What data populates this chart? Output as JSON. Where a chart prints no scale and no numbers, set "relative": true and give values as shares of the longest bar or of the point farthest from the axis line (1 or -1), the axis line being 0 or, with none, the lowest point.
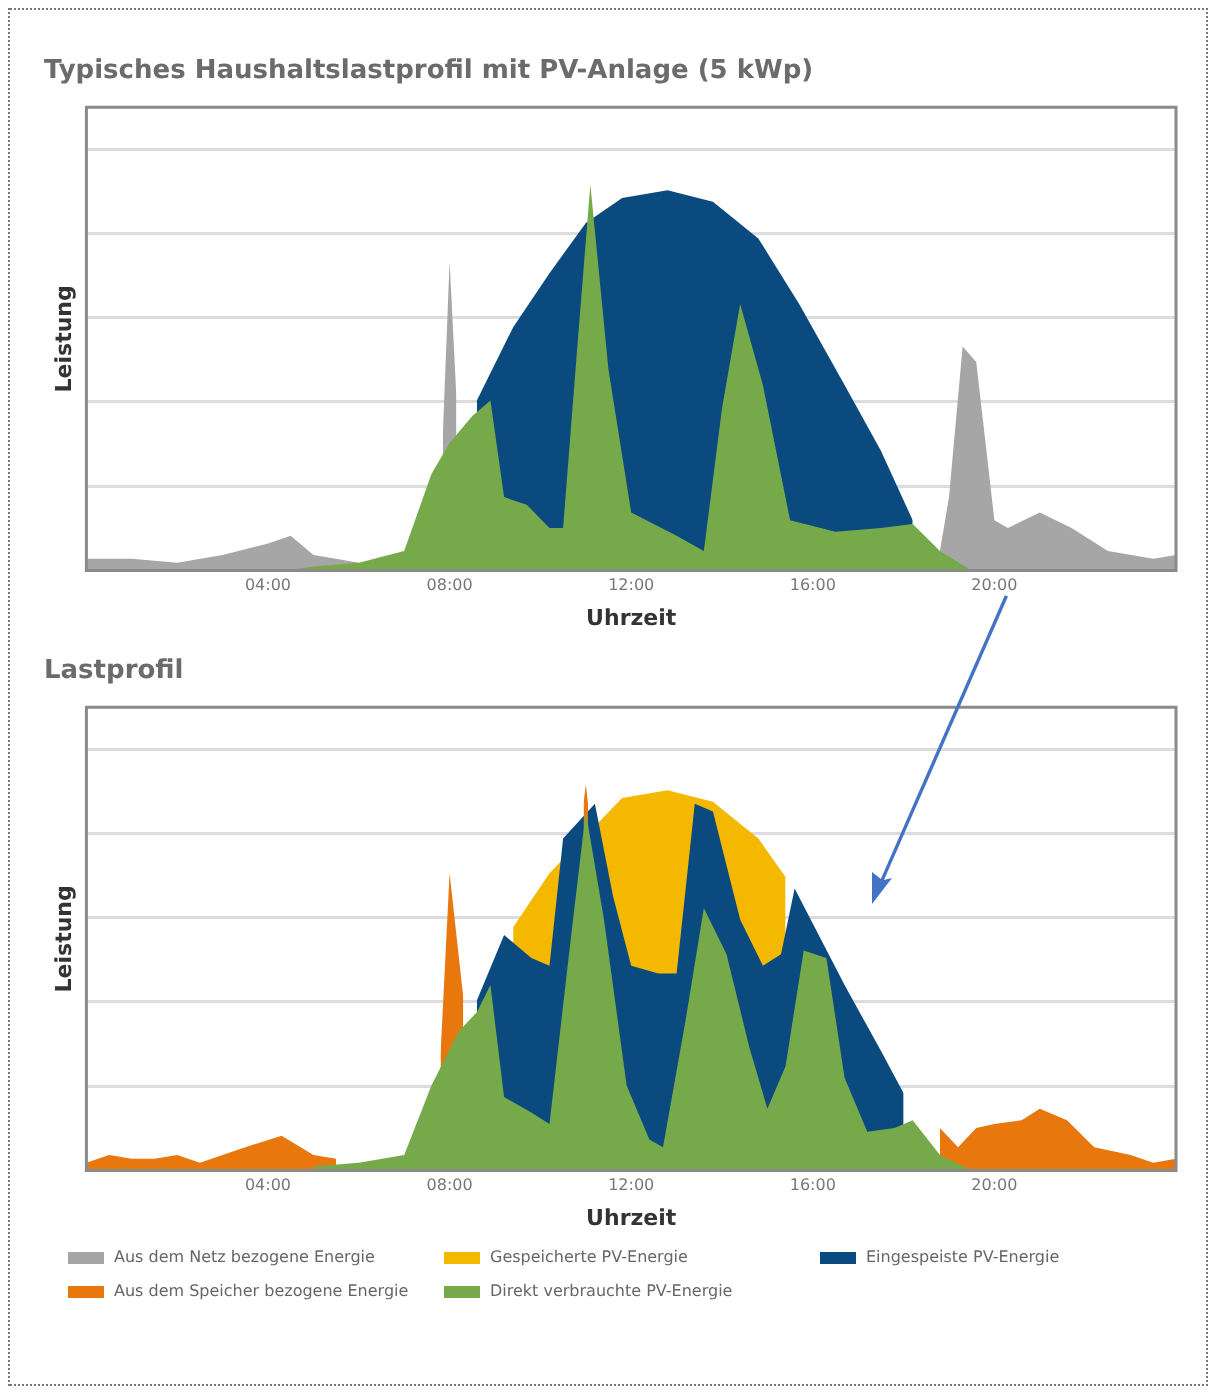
{
  "chart_data": [
    {
      "type": "area",
      "title": "Typisches Haushaltslastprofil mit PV-Anlage (5 kWp)",
      "xlabel": "Uhrzeit",
      "ylabel": "Leistung",
      "relative": true,
      "xlim": [
        0,
        24
      ],
      "xticks": [
        {
          "value": 4,
          "label": "04:00"
        },
        {
          "value": 8,
          "label": "08:00"
        },
        {
          "value": 12,
          "label": "12:00"
        },
        {
          "value": 16,
          "label": "16:00"
        },
        {
          "value": 20,
          "label": "20:00"
        }
      ],
      "grid": "y",
      "tick_labels": "x",
      "legend": "bottom",
      "series": [
        {
          "color": "#0a4a7f",
          "x": [
            8.6,
            9.4,
            10.2,
            11,
            11.8,
            12.8,
            13.8,
            14.8,
            15.7,
            16.7,
            17.5,
            18.2
          ],
          "values": [
            0.44,
            0.63,
            0.77,
            0.9,
            0.965,
            0.985,
            0.955,
            0.86,
            0.69,
            0.48,
            0.31,
            0.13
          ]
        },
        {
          "name": "Aus dem Netz bezogene Energie",
          "color": "#a6a6a6",
          "x": [
            0,
            1,
            2,
            3,
            4,
            4.5,
            5,
            5.5,
            6,
            7,
            7.85,
            8,
            8.15,
            8.6,
            18.8,
            19,
            19.3,
            19.6,
            20,
            20.3,
            21,
            21.7,
            22.5,
            23.5,
            24
          ],
          "values": [
            0.03,
            0.03,
            0.02,
            0.04,
            0.07,
            0.09,
            0.04,
            0.03,
            0.02,
            null,
            0.35,
            0.8,
            0.45,
            null,
            0.05,
            0.19,
            0.58,
            0.54,
            0.13,
            0.11,
            0.15,
            0.11,
            0.05,
            0.03,
            0.04
          ]
        },
        {
          "color": "#76a94a",
          "x": [
            4.4,
            5,
            6,
            7,
            7.6,
            8,
            8.5,
            8.9,
            9.2,
            9.7,
            10.2,
            10.5,
            10.8,
            11.1,
            11.5,
            12,
            13,
            13.6,
            14,
            14.4,
            14.9,
            15.5,
            16.5,
            17.5,
            18.2,
            18.8,
            19.5,
            20
          ],
          "values": [
            0,
            0.01,
            0.02,
            0.05,
            0.25,
            0.33,
            0.4,
            0.44,
            0.19,
            0.17,
            0.11,
            0.11,
            0.56,
            1,
            0.52,
            0.15,
            0.09,
            0.05,
            0.42,
            0.69,
            0.48,
            0.13,
            0.1,
            0.11,
            0.12,
            0.05,
            0,
            0
          ]
        }
      ]
    },
    {
      "type": "area",
      "title": "Lastprofil",
      "xlabel": "Uhrzeit",
      "ylabel": "Leistung",
      "relative": true,
      "xlim": [
        0,
        24
      ],
      "xticks": [
        {
          "value": 4,
          "label": "04:00"
        },
        {
          "value": 8,
          "label": "08:00"
        },
        {
          "value": 12,
          "label": "12:00"
        },
        {
          "value": 16,
          "label": "16:00"
        },
        {
          "value": 20,
          "label": "20:00"
        }
      ],
      "grid": "y",
      "tick_labels": "x",
      "legend": "bottom",
      "series": [
        {
          "name": "Gespeicherte PV-Energie",
          "color": "#f5b800",
          "x": [
            9.4,
            10.2,
            11.8,
            12.8,
            13.8,
            14.8,
            15.4
          ],
          "values": [
            0.63,
            0.77,
            0.965,
            0.985,
            0.955,
            0.86,
            0.76
          ]
        },
        {
          "name": "Eingespeiste PV-Energie",
          "color": "#0a4a7f",
          "x": [
            8.6,
            9.2,
            9.8,
            10.2,
            10.5,
            11.2,
            11.6,
            12,
            12.6,
            13,
            13.4,
            13.8,
            14.4,
            14.9,
            15.3,
            15.6,
            16.7,
            17.5,
            18
          ],
          "values": [
            0.44,
            0.61,
            0.55,
            0.53,
            0.86,
            0.95,
            0.71,
            0.53,
            0.51,
            0.51,
            0.95,
            0.93,
            0.65,
            0.53,
            0.56,
            0.73,
            0.48,
            0.31,
            0.2
          ]
        },
        {
          "name": "Aus dem Speicher bezogene Energie",
          "color": "#e8780e",
          "x": [
            0,
            0.5,
            1,
            1.5,
            2,
            2.5,
            3,
            3.5,
            4.3,
            5,
            5.5,
            6,
            7.8,
            8,
            8.3,
            8.6,
            10.95,
            11,
            11.05,
            11.5,
            18.8,
            19.2,
            19.6,
            20,
            20.6,
            21,
            21.6,
            22.2,
            23,
            23.5,
            24
          ],
          "values": [
            0.02,
            0.04,
            0.03,
            0.03,
            0.04,
            0.02,
            0.04,
            0.06,
            0.09,
            0.04,
            0.03,
            null,
            0.3,
            0.77,
            0.45,
            null,
            0.95,
            1,
            0.95,
            null,
            0.11,
            0.06,
            0.11,
            0.12,
            0.13,
            0.16,
            0.13,
            0.06,
            0.04,
            0.02,
            0.03
          ]
        },
        {
          "name": "Direkt verbrauchte PV-Energie",
          "color": "#76a94a",
          "x": [
            5,
            6,
            7,
            7.6,
            8.2,
            8.6,
            8.9,
            9.2,
            9.8,
            10.2,
            10.6,
            11,
            11.4,
            11.9,
            12.4,
            12.7,
            13.2,
            13.6,
            14.1,
            14.6,
            15,
            15.4,
            15.8,
            16.3,
            16.7,
            17.2,
            17.8,
            18.2,
            18.8,
            19.5
          ],
          "values": [
            0.01,
            0.02,
            0.04,
            0.22,
            0.36,
            0.41,
            0.48,
            0.19,
            0.15,
            0.12,
            0.53,
            0.93,
            0.65,
            0.22,
            0.08,
            0.06,
            0.39,
            0.68,
            0.56,
            0.32,
            0.16,
            0.27,
            0.57,
            0.55,
            0.24,
            0.1,
            0.11,
            0.13,
            0.04,
            0
          ]
        }
      ]
    }
  ]
}
